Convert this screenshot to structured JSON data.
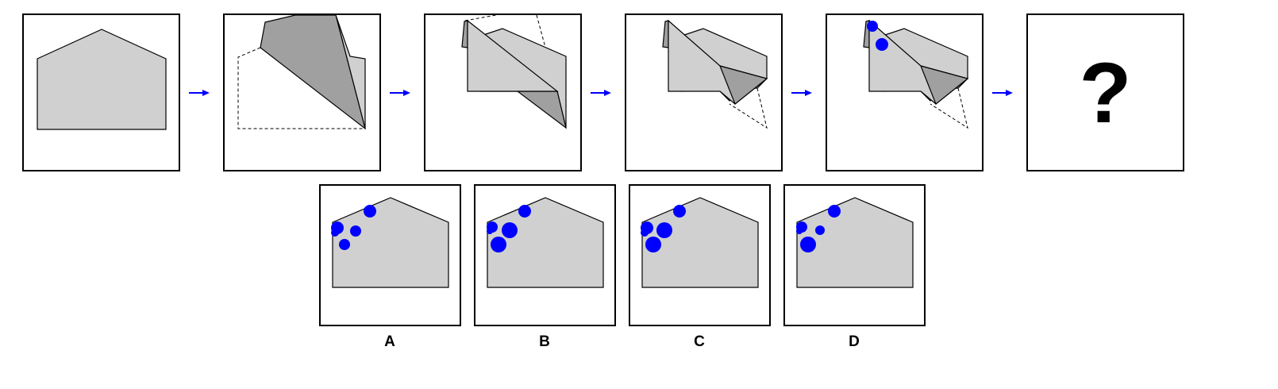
{
  "colors": {
    "paper": "#d0d0d0",
    "flap": "#a0a0a0",
    "hole": "#0000ff",
    "arrow": "#0000ff",
    "border": "#000000"
  },
  "question_mark": "?",
  "options": [
    {
      "label": "A"
    },
    {
      "label": "B"
    },
    {
      "label": "C"
    },
    {
      "label": "D"
    }
  ]
}
